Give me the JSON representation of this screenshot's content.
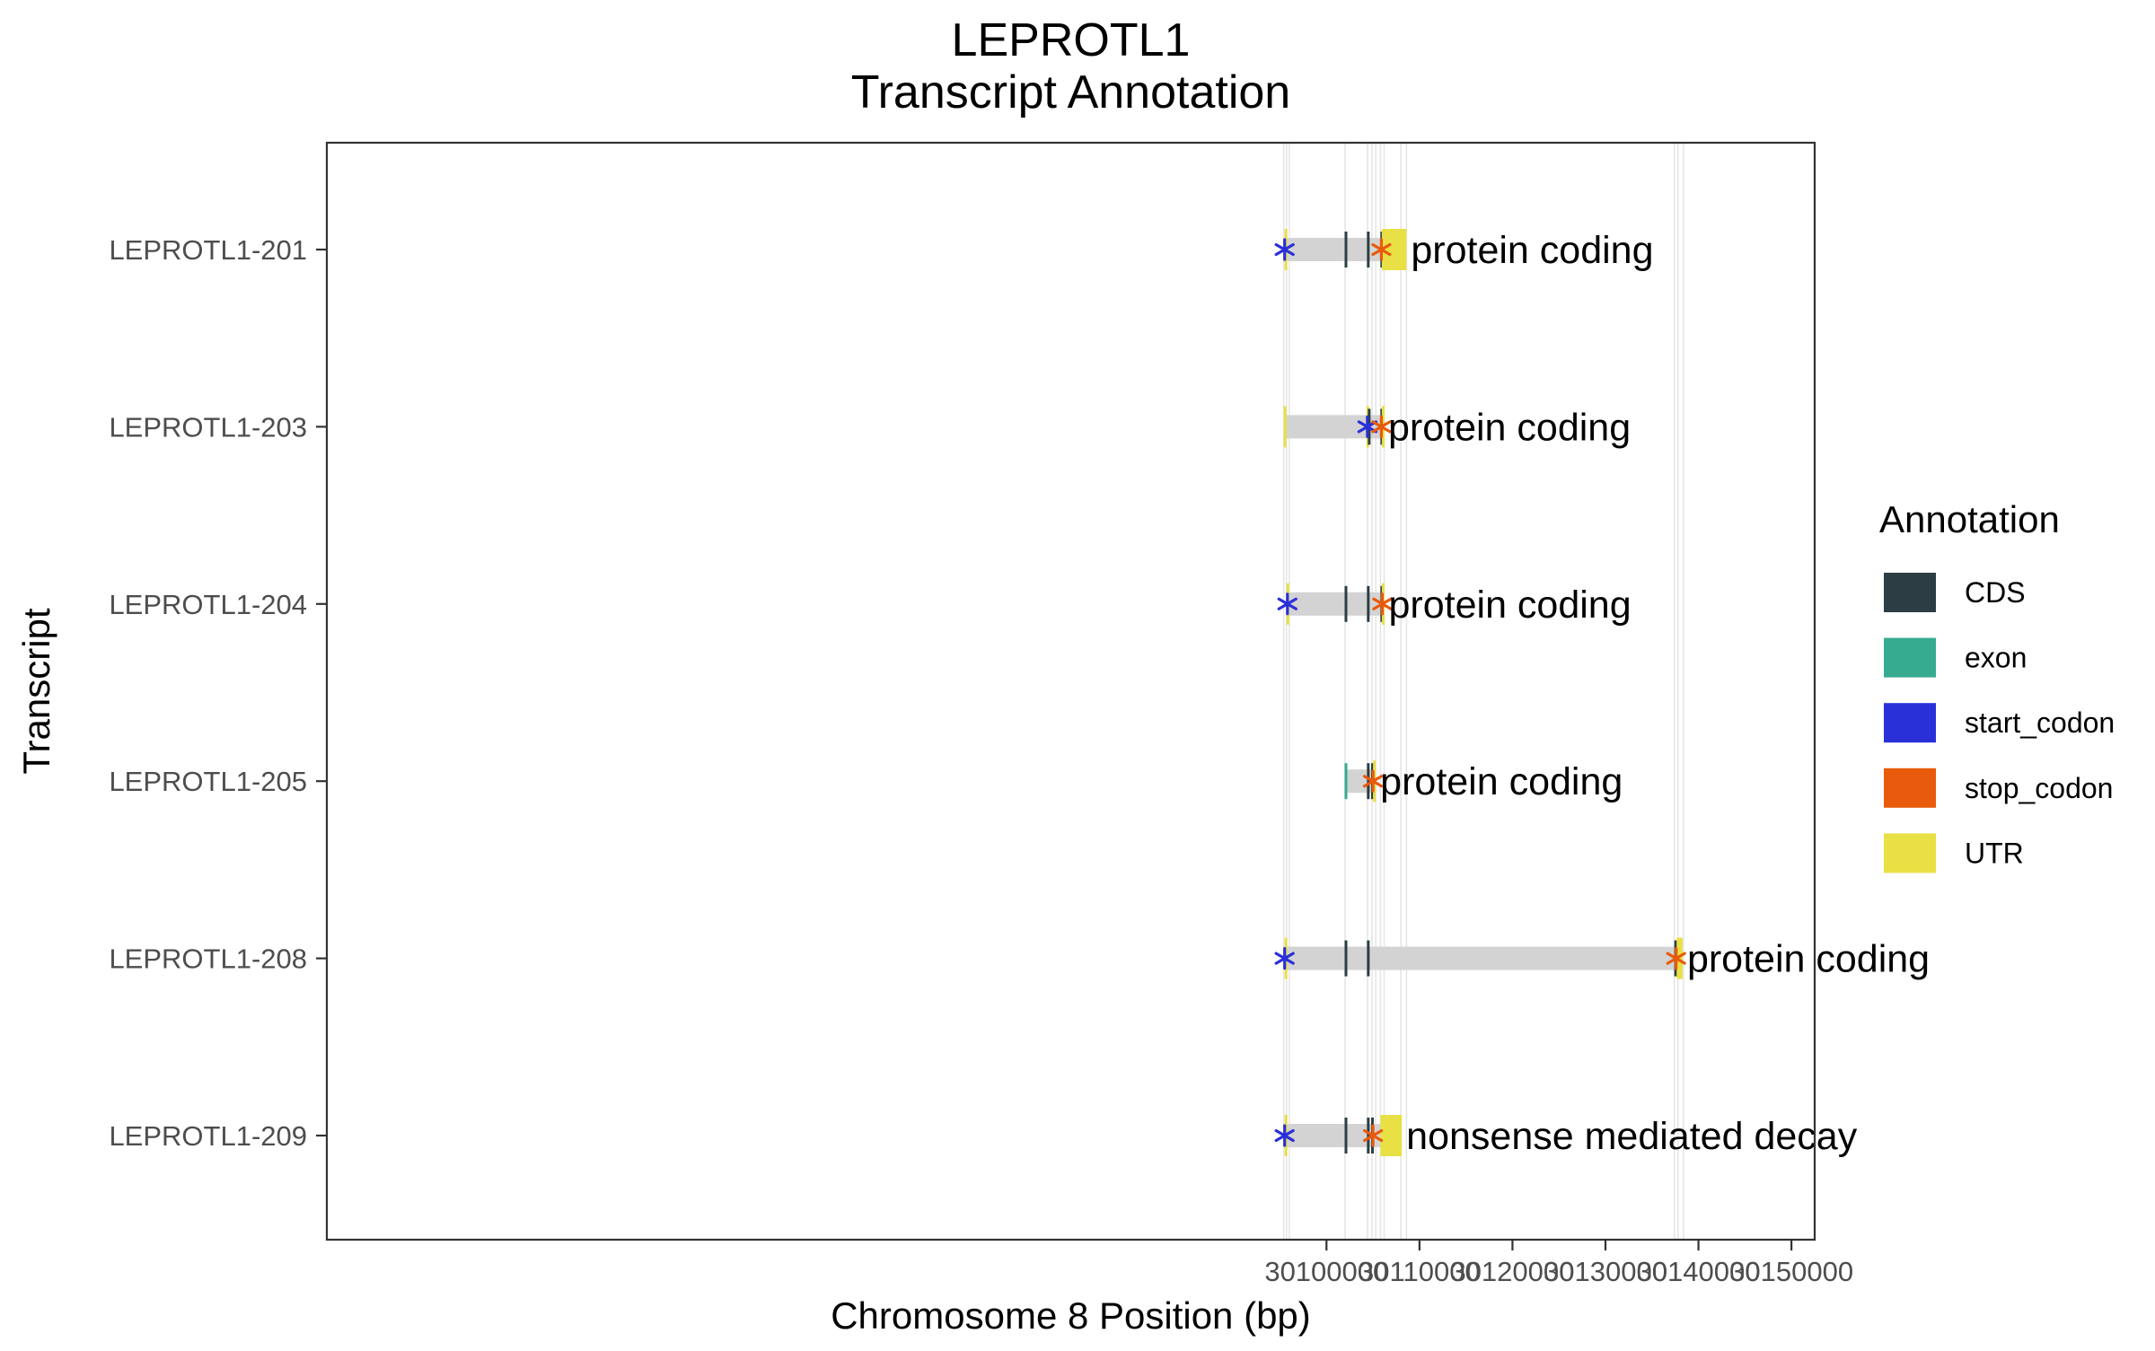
{
  "chart_data": {
    "type": "gene-track",
    "title": [
      "LEPROTL1",
      "Transcript Annotation"
    ],
    "xlabel": "Chromosome 8 Position (bp)",
    "ylabel": "Transcript",
    "xlim": [
      29992500,
      30152500
    ],
    "xticks": [
      30100000,
      30110000,
      30120000,
      30130000,
      30140000,
      30150000
    ],
    "xtick_labels": [
      "30100000",
      "30110000",
      "30120000",
      "30130000",
      "30140000",
      "30150000"
    ],
    "grid": true,
    "grid_lines": [
      30095400,
      30095700,
      30096000,
      30102000,
      30104400,
      30104900,
      30105300,
      30105800,
      30106200,
      30108000,
      30108600,
      30137400,
      30137800,
      30138400
    ],
    "legend": {
      "title": "Annotation",
      "position": "right",
      "items": [
        {
          "label": "CDS",
          "color": "#2c3e44"
        },
        {
          "label": "exon",
          "color": "#36ab8f"
        },
        {
          "label": "start_codon",
          "color": "#2a30d8"
        },
        {
          "label": "stop_codon",
          "color": "#e85a0c"
        },
        {
          "label": "UTR",
          "color": "#e8e044"
        }
      ]
    },
    "transcripts": [
      {
        "name": "LEPROTL1-209",
        "biotype": "nonsense mediated decay",
        "start": 30095500,
        "end": 30108100,
        "features": [
          {
            "type": "UTR",
            "start": 30095500,
            "end": 30095650
          },
          {
            "type": "CDS",
            "start": 30101950,
            "end": 30102050
          },
          {
            "type": "CDS",
            "start": 30104350,
            "end": 30104550
          },
          {
            "type": "CDS",
            "start": 30104800,
            "end": 30105000
          },
          {
            "type": "UTR",
            "start": 30105800,
            "end": 30108100
          }
        ],
        "start_codon": 30095500,
        "stop_codon": 30105000
      },
      {
        "name": "LEPROTL1-208",
        "biotype": "protein coding",
        "start": 30095500,
        "end": 30138300,
        "features": [
          {
            "type": "UTR",
            "start": 30095500,
            "end": 30095650
          },
          {
            "type": "CDS",
            "start": 30101950,
            "end": 30102050
          },
          {
            "type": "CDS",
            "start": 30104350,
            "end": 30104550
          },
          {
            "type": "CDS",
            "start": 30137400,
            "end": 30137650
          },
          {
            "type": "UTR",
            "start": 30137650,
            "end": 30138300
          }
        ],
        "start_codon": 30095500,
        "stop_codon": 30137600
      },
      {
        "name": "LEPROTL1-205",
        "biotype": "protein coding",
        "start": 30101950,
        "end": 30105300,
        "features": [
          {
            "type": "exon",
            "start": 30101950,
            "end": 30102050
          },
          {
            "type": "CDS",
            "start": 30104350,
            "end": 30104550
          },
          {
            "type": "CDS",
            "start": 30104800,
            "end": 30105000
          },
          {
            "type": "UTR",
            "start": 30105000,
            "end": 30105300
          }
        ],
        "start_codon": null,
        "stop_codon": 30105000
      },
      {
        "name": "LEPROTL1-204",
        "biotype": "protein coding",
        "start": 30095700,
        "end": 30106200,
        "features": [
          {
            "type": "UTR",
            "start": 30095700,
            "end": 30095950
          },
          {
            "type": "CDS",
            "start": 30101950,
            "end": 30102050
          },
          {
            "type": "CDS",
            "start": 30104350,
            "end": 30104550
          },
          {
            "type": "CDS",
            "start": 30105800,
            "end": 30105950
          },
          {
            "type": "UTR",
            "start": 30105950,
            "end": 30106200
          }
        ],
        "start_codon": 30095800,
        "stop_codon": 30106000
      },
      {
        "name": "LEPROTL1-203",
        "biotype": "protein coding",
        "start": 30095400,
        "end": 30106150,
        "features": [
          {
            "type": "UTR",
            "start": 30095400,
            "end": 30095550
          },
          {
            "type": "UTR",
            "start": 30104300,
            "end": 30104450
          },
          {
            "type": "CDS",
            "start": 30104450,
            "end": 30104550
          },
          {
            "type": "CDS",
            "start": 30105800,
            "end": 30105950
          },
          {
            "type": "UTR",
            "start": 30105950,
            "end": 30106150
          }
        ],
        "start_codon": 30104400,
        "stop_codon": 30105900
      },
      {
        "name": "LEPROTL1-201",
        "biotype": "protein coding",
        "start": 30095500,
        "end": 30108600,
        "features": [
          {
            "type": "UTR",
            "start": 30095500,
            "end": 30095650
          },
          {
            "type": "CDS",
            "start": 30101950,
            "end": 30102050
          },
          {
            "type": "CDS",
            "start": 30104350,
            "end": 30104550
          },
          {
            "type": "CDS",
            "start": 30105800,
            "end": 30105950
          },
          {
            "type": "UTR",
            "start": 30105950,
            "end": 30108600
          }
        ],
        "start_codon": 30095500,
        "stop_codon": 30105900
      }
    ]
  }
}
